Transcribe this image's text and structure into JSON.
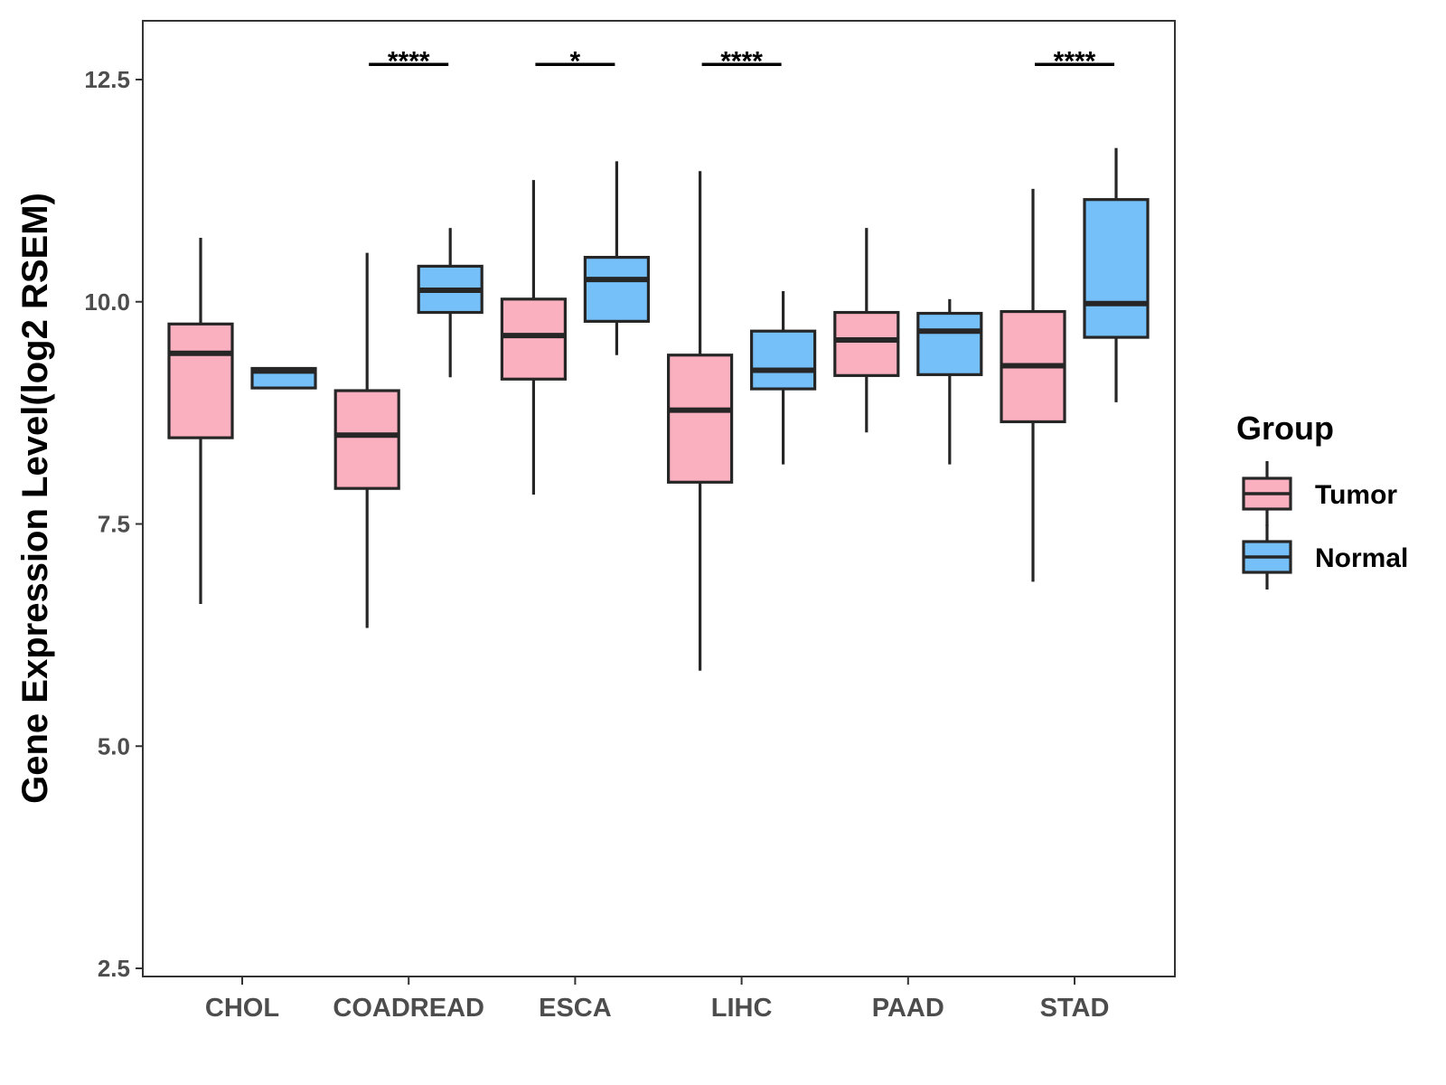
{
  "chart_data": {
    "type": "boxplot",
    "title": "",
    "xlabel": "",
    "ylabel": "Gene Expression Level(log2 RSEM)",
    "ylim": [
      2.4,
      13.2
    ],
    "yticks": [
      2.5,
      5.0,
      7.5,
      10.0,
      12.5
    ],
    "ytick_labels": [
      "2.5",
      "5.0",
      "7.5",
      "10.0",
      "12.5"
    ],
    "grid": false,
    "categories": [
      "CHOL",
      "COADREAD",
      "ESCA",
      "LIHC",
      "PAAD",
      "STAD"
    ],
    "legend": {
      "title": "Group",
      "position": "right",
      "entries": [
        {
          "name": "Tumor",
          "color": "#FBB0C0"
        },
        {
          "name": "Normal",
          "color": "#75C0F8"
        }
      ]
    },
    "series": [
      {
        "name": "Tumor",
        "color": "#FBB0C0",
        "boxes": [
          {
            "category": "CHOL",
            "min": 6.6,
            "q1": 8.47,
            "median": 9.42,
            "q3": 9.75,
            "max": 10.72
          },
          {
            "category": "COADREAD",
            "min": 6.33,
            "q1": 7.9,
            "median": 8.5,
            "q3": 9.0,
            "max": 10.55
          },
          {
            "category": "ESCA",
            "min": 7.83,
            "q1": 9.13,
            "median": 9.62,
            "q3": 10.03,
            "max": 11.37
          },
          {
            "category": "LIHC",
            "min": 5.85,
            "q1": 7.97,
            "median": 8.78,
            "q3": 9.4,
            "max": 11.47
          },
          {
            "category": "PAAD",
            "min": 8.53,
            "q1": 9.17,
            "median": 9.57,
            "q3": 9.88,
            "max": 10.83
          },
          {
            "category": "STAD",
            "min": 6.85,
            "q1": 8.65,
            "median": 9.28,
            "q3": 9.89,
            "max": 11.27
          }
        ]
      },
      {
        "name": "Normal",
        "color": "#75C0F8",
        "boxes": [
          {
            "category": "CHOL",
            "min": 9.03,
            "q1": 9.03,
            "median": 9.22,
            "q3": 9.25,
            "max": 9.25
          },
          {
            "category": "COADREAD",
            "min": 9.15,
            "q1": 9.88,
            "median": 10.13,
            "q3": 10.4,
            "max": 10.83
          },
          {
            "category": "ESCA",
            "min": 9.4,
            "q1": 9.78,
            "median": 10.25,
            "q3": 10.5,
            "max": 11.58
          },
          {
            "category": "LIHC",
            "min": 8.17,
            "q1": 9.02,
            "median": 9.23,
            "q3": 9.67,
            "max": 10.12
          },
          {
            "category": "PAAD",
            "min": 8.17,
            "q1": 9.18,
            "median": 9.67,
            "q3": 9.87,
            "max": 10.03
          },
          {
            "category": "STAD",
            "min": 8.87,
            "q1": 9.6,
            "median": 9.98,
            "q3": 11.15,
            "max": 11.73
          }
        ]
      }
    ],
    "significance": [
      {
        "category": "COADREAD",
        "label": "****"
      },
      {
        "category": "ESCA",
        "label": "*"
      },
      {
        "category": "LIHC",
        "label": "****"
      },
      {
        "category": "STAD",
        "label": "****"
      }
    ],
    "significance_level": 12.67
  }
}
